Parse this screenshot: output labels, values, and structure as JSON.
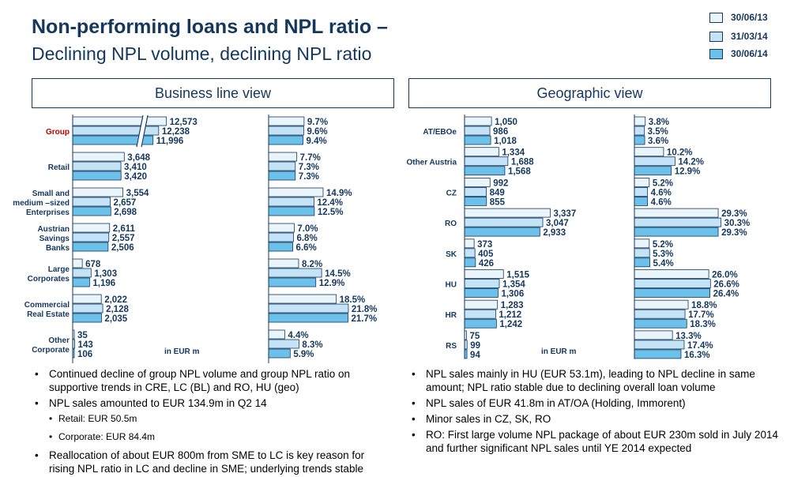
{
  "header": {
    "title": "Non-performing loans and NPL ratio –",
    "subtitle": "Declining NPL volume, declining NPL ratio"
  },
  "legend": [
    {
      "label": "30/06/13",
      "color": "#eaf4fb"
    },
    {
      "label": "31/03/14",
      "color": "#c5e3f6"
    },
    {
      "label": "30/06/14",
      "color": "#6cc1ea"
    }
  ],
  "colors": {
    "stroke": "#14375e",
    "text": "#14375e",
    "group_label": "#c00000"
  },
  "panels": {
    "business": {
      "title": "Business line view",
      "unit": "in EUR m"
    },
    "geographic": {
      "title": "Geographic view",
      "unit": "in EUR m"
    }
  },
  "chart_data": [
    {
      "type": "bar",
      "orientation": "horizontal",
      "panel": "Business line view",
      "measure": "NPL volume",
      "unit": "in EUR m",
      "axis_break": true,
      "categories": [
        "Group",
        "Retail",
        "Small and medium –sized Enterprises",
        "Austrian Savings Banks",
        "Large Corporates",
        "Commercial Real Estate",
        "Other Corporate"
      ],
      "category_lines": [
        [
          "Group"
        ],
        [
          "Retail"
        ],
        [
          "Small and",
          "medium –sized",
          "Enterprises"
        ],
        [
          "Austrian",
          "Savings",
          "Banks"
        ],
        [
          "Large",
          "Corporates"
        ],
        [
          "Commercial",
          "Real Estate"
        ],
        [
          "Other",
          "Corporate"
        ]
      ],
      "series": [
        {
          "name": "30/06/13",
          "values": [
            12573,
            3648,
            3554,
            2611,
            678,
            2022,
            35
          ],
          "labels": [
            "12,573",
            "3,648",
            "3,554",
            "2,611",
            "678",
            "2,022",
            "35"
          ]
        },
        {
          "name": "31/03/14",
          "values": [
            12238,
            3410,
            2657,
            2557,
            1303,
            2128,
            143
          ],
          "labels": [
            "12,238",
            "3,410",
            "2,657",
            "2,557",
            "1,303",
            "2,128",
            "143"
          ]
        },
        {
          "name": "30/06/14",
          "values": [
            11996,
            3420,
            2698,
            2506,
            1196,
            2035,
            106
          ],
          "labels": [
            "11,996",
            "3,420",
            "2,698",
            "2,506",
            "1,196",
            "2,035",
            "106"
          ]
        }
      ]
    },
    {
      "type": "bar",
      "orientation": "horizontal",
      "panel": "Business line view",
      "measure": "NPL ratio",
      "unit": "%",
      "categories": [
        "Group",
        "Retail",
        "Small and medium –sized Enterprises",
        "Austrian Savings Banks",
        "Large Corporates",
        "Commercial Real Estate",
        "Other Corporate"
      ],
      "series": [
        {
          "name": "30/06/13",
          "values": [
            9.7,
            7.7,
            14.9,
            7.0,
            8.2,
            18.5,
            4.4
          ],
          "labels": [
            "9.7%",
            "7.7%",
            "14.9%",
            "7.0%",
            "8.2%",
            "18.5%",
            "4.4%"
          ]
        },
        {
          "name": "31/03/14",
          "values": [
            9.6,
            7.3,
            12.4,
            6.8,
            14.5,
            21.8,
            8.3
          ],
          "labels": [
            "9.6%",
            "7.3%",
            "12.4%",
            "6.8%",
            "14.5%",
            "21.8%",
            "8.3%"
          ]
        },
        {
          "name": "30/06/14",
          "values": [
            9.4,
            7.3,
            12.5,
            6.6,
            12.9,
            21.7,
            5.9
          ],
          "labels": [
            "9.4%",
            "7.3%",
            "12.5%",
            "6.6%",
            "12.9%",
            "21.7%",
            "5.9%"
          ]
        }
      ]
    },
    {
      "type": "bar",
      "orientation": "horizontal",
      "panel": "Geographic view",
      "measure": "NPL volume",
      "unit": "in EUR m",
      "categories": [
        "AT/EBOe",
        "Other Austria",
        "CZ",
        "RO",
        "SK",
        "HU",
        "HR",
        "RS"
      ],
      "category_lines": [
        [
          "AT/EBOe"
        ],
        [
          "Other Austria"
        ],
        [
          "CZ"
        ],
        [
          "RO"
        ],
        [
          "SK"
        ],
        [
          "HU"
        ],
        [
          "HR"
        ],
        [
          "RS"
        ]
      ],
      "series": [
        {
          "name": "30/06/13",
          "values": [
            1050,
            1334,
            992,
            3337,
            373,
            1515,
            1283,
            75
          ],
          "labels": [
            "1,050",
            "1,334",
            "992",
            "3,337",
            "373",
            "1,515",
            "1,283",
            "75"
          ]
        },
        {
          "name": "31/03/14",
          "values": [
            986,
            1688,
            849,
            3047,
            405,
            1354,
            1212,
            99
          ],
          "labels": [
            "986",
            "1,688",
            "849",
            "3,047",
            "405",
            "1,354",
            "1,212",
            "99"
          ]
        },
        {
          "name": "30/06/14",
          "values": [
            1018,
            1568,
            855,
            2933,
            426,
            1306,
            1242,
            94
          ],
          "labels": [
            "1,018",
            "1,568",
            "855",
            "2,933",
            "426",
            "1,306",
            "1,242",
            "94"
          ]
        }
      ]
    },
    {
      "type": "bar",
      "orientation": "horizontal",
      "panel": "Geographic view",
      "measure": "NPL ratio",
      "unit": "%",
      "categories": [
        "AT/EBOe",
        "Other Austria",
        "CZ",
        "RO",
        "SK",
        "HU",
        "HR",
        "RS"
      ],
      "series": [
        {
          "name": "30/06/13",
          "values": [
            3.8,
            10.2,
            5.2,
            29.3,
            5.2,
            26.0,
            18.8,
            13.3
          ],
          "labels": [
            "3.8%",
            "10.2%",
            "5.2%",
            "29.3%",
            "5.2%",
            "26.0%",
            "18.8%",
            "13.3%"
          ]
        },
        {
          "name": "31/03/14",
          "values": [
            3.5,
            14.2,
            4.6,
            30.3,
            5.3,
            26.6,
            17.7,
            17.4
          ],
          "labels": [
            "3.5%",
            "14.2%",
            "4.6%",
            "30.3%",
            "5.3%",
            "26.6%",
            "17.7%",
            "17.4%"
          ]
        },
        {
          "name": "30/06/14",
          "values": [
            3.6,
            12.9,
            4.6,
            29.3,
            5.4,
            26.4,
            18.3,
            16.3
          ],
          "labels": [
            "3.6%",
            "12.9%",
            "4.6%",
            "29.3%",
            "5.4%",
            "26.4%",
            "18.3%",
            "16.3%"
          ]
        }
      ]
    }
  ],
  "bullets": {
    "left": [
      {
        "text": "Continued decline of group NPL volume and group NPL ratio on supportive trends in CRE, LC (BL) and RO, HU (geo)",
        "sub": []
      },
      {
        "text": "NPL sales amounted to EUR 134.9m in Q2 14",
        "sub": [
          "Retail: EUR 50.5m",
          "Corporate: EUR 84.4m"
        ]
      },
      {
        "text": "Reallocation of about EUR 800m from SME to LC is key reason for rising NPL ratio in LC and decline in SME; underlying trends stable",
        "sub": []
      }
    ],
    "right": [
      {
        "text": "NPL sales mainly in  HU (EUR 53.1m), leading to NPL decline in same amount; NPL ratio stable due to declining overall loan volume",
        "sub": []
      },
      {
        "text": "NPL sales of EUR 41.8m in AT/OA (Holding, Immorent)",
        "sub": []
      },
      {
        "text": "Minor sales in CZ, SK, RO",
        "sub": []
      },
      {
        "text": "RO: First large volume NPL package of about EUR 230m sold in July 2014 and further significant NPL sales until YE 2014 expected",
        "sub": []
      }
    ]
  }
}
